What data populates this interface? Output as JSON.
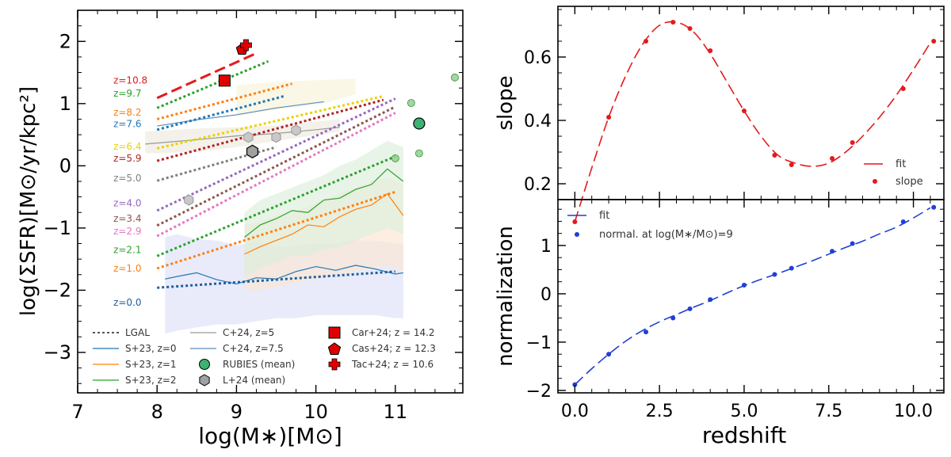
{
  "chart_data": [
    {
      "type": "line",
      "title": "",
      "xlabel": "log(M∗)[M⊙]",
      "ylabel": "log(ΣSFR)[M⊙/yr/kpc²]",
      "xlim": [
        7,
        11.85
      ],
      "ylim": [
        -3.65,
        2.5
      ],
      "xticks": [
        "7",
        "8",
        "9",
        "10",
        "11"
      ],
      "yticks": [
        "−3",
        "−2",
        "−1",
        "0",
        "1",
        "2"
      ],
      "lgal_lines": [
        {
          "z_label": "z=10.8",
          "z": 10.8,
          "color": "#e41a1c",
          "x": [
            8.0,
            9.25
          ],
          "y": [
            1.09,
            1.81
          ],
          "label_y": 1.37
        },
        {
          "z_label": "z=9.7",
          "z": 9.7,
          "color": "#2ca02c",
          "x": [
            8.0,
            9.4
          ],
          "y": [
            0.93,
            1.68
          ],
          "label_y": 1.16
        },
        {
          "z_label": "z=8.2",
          "z": 8.2,
          "color": "#ff7f0e",
          "x": [
            8.0,
            9.7
          ],
          "y": [
            0.75,
            1.32
          ],
          "label_y": 0.86
        },
        {
          "z_label": "z=7.6",
          "z": 7.6,
          "color": "#1f77b4",
          "x": [
            8.0,
            9.6
          ],
          "y": [
            0.58,
            1.12
          ],
          "label_y": 0.67
        },
        {
          "z_label": "z=6.4",
          "z": 6.4,
          "color": "#e8d200",
          "x": [
            8.0,
            10.85
          ],
          "y": [
            0.28,
            1.12
          ],
          "label_y": 0.31
        },
        {
          "z_label": "z=5.9",
          "z": 5.9,
          "color": "#b22222",
          "x": [
            8.0,
            10.85
          ],
          "y": [
            0.08,
            1.06
          ],
          "label_y": 0.12
        },
        {
          "z_label": "z=5.0",
          "z": 5.0,
          "color": "#7f7f7f",
          "x": [
            8.0,
            9.5
          ],
          "y": [
            -0.24,
            0.3
          ],
          "label_y": -0.2
        },
        {
          "z_label": "z=4.0",
          "z": 4.0,
          "color": "#9467bd",
          "x": [
            8.0,
            11.0
          ],
          "y": [
            -0.72,
            1.08
          ],
          "label_y": -0.6
        },
        {
          "z_label": "z=3.4",
          "z": 3.4,
          "color": "#8c564b",
          "x": [
            8.0,
            11.0
          ],
          "y": [
            -0.96,
            0.95
          ],
          "label_y": -0.85
        },
        {
          "z_label": "z=2.9",
          "z": 2.9,
          "color": "#e377c2",
          "x": [
            8.0,
            11.0
          ],
          "y": [
            -1.13,
            0.85
          ],
          "label_y": -1.05
        },
        {
          "z_label": "z=2.1",
          "z": 2.1,
          "color": "#2ca02c",
          "x": [
            8.0,
            11.0
          ],
          "y": [
            -1.45,
            0.15
          ],
          "label_y": -1.35
        },
        {
          "z_label": "z=1.0",
          "z": 1.0,
          "color": "#ff7f0e",
          "x": [
            8.0,
            11.0
          ],
          "y": [
            -1.65,
            -0.42
          ],
          "label_y": -1.65
        },
        {
          "z_label": "z=0.0",
          "z": 0.0,
          "color": "#1f5f9e",
          "x": [
            8.0,
            11.0
          ],
          "y": [
            -1.96,
            -1.7
          ],
          "label_y": -2.2
        }
      ],
      "s23_series": [
        {
          "name": "S+23, z=0",
          "color": "#1f77b4",
          "band": "#dde0f8",
          "x": [
            8.1,
            8.25,
            8.5,
            8.75,
            9.0,
            9.25,
            9.5,
            9.75,
            10.0,
            10.25,
            10.5,
            10.75,
            11.0,
            11.1
          ],
          "y": [
            -1.82,
            -1.78,
            -1.72,
            -1.83,
            -1.9,
            -1.8,
            -1.82,
            -1.7,
            -1.62,
            -1.68,
            -1.6,
            -1.66,
            -1.74,
            -1.72
          ],
          "lo": [
            -2.7,
            -2.65,
            -2.6,
            -2.55,
            -2.55,
            -2.5,
            -2.45,
            -2.45,
            -2.4,
            -2.4,
            -2.4,
            -2.4,
            -2.45,
            -2.45
          ],
          "hi": [
            -1.15,
            -1.1,
            -1.18,
            -1.2,
            -1.28,
            -1.22,
            -1.3,
            -1.28,
            -1.25,
            -1.25,
            -1.2,
            -1.2,
            -1.25,
            -1.25
          ]
        },
        {
          "name": "S+23, z=1",
          "color": "#ff7f0e",
          "band": "#fbe6d2",
          "x": [
            9.1,
            9.3,
            9.5,
            9.7,
            9.9,
            10.1,
            10.3,
            10.5,
            10.7,
            10.9,
            11.1
          ],
          "y": [
            -1.42,
            -1.3,
            -1.2,
            -1.1,
            -0.95,
            -0.98,
            -0.82,
            -0.7,
            -0.63,
            -0.45,
            -0.8
          ],
          "lo": [
            -2.0,
            -2.0,
            -1.95,
            -1.9,
            -1.85,
            -1.8,
            -1.75,
            -1.7,
            -1.65,
            -1.6,
            -1.7
          ],
          "hi": [
            -0.95,
            -0.9,
            -0.8,
            -0.75,
            -0.65,
            -0.55,
            -0.45,
            -0.35,
            -0.25,
            -0.2,
            -0.3
          ]
        },
        {
          "name": "S+23, z=2",
          "color": "#2ca02c",
          "band": "#dceedb",
          "x": [
            9.1,
            9.3,
            9.5,
            9.7,
            9.9,
            10.1,
            10.3,
            10.5,
            10.7,
            10.9,
            11.1
          ],
          "y": [
            -1.15,
            -0.95,
            -0.85,
            -0.72,
            -0.75,
            -0.55,
            -0.52,
            -0.38,
            -0.3,
            -0.05,
            -0.25
          ],
          "lo": [
            -1.8,
            -1.65,
            -1.55,
            -1.45,
            -1.45,
            -1.35,
            -1.3,
            -1.2,
            -1.1,
            -1.0,
            -1.1
          ],
          "hi": [
            -0.75,
            -0.55,
            -0.45,
            -0.35,
            -0.25,
            -0.15,
            0.0,
            0.1,
            0.25,
            0.4,
            0.3
          ]
        }
      ],
      "c24_series": [
        {
          "name": "C+24, z=5",
          "color": "#999999",
          "x": [
            7.85,
            8.5,
            9.0,
            9.5,
            10.0,
            10.3
          ],
          "y": [
            0.35,
            0.42,
            0.48,
            0.52,
            0.58,
            0.62
          ]
        },
        {
          "name": "C+24, z=7.5",
          "color": "#5a8bbf",
          "x": [
            8.0,
            8.5,
            9.0,
            9.5,
            10.1
          ],
          "y": [
            0.64,
            0.74,
            0.82,
            0.93,
            1.03
          ]
        }
      ],
      "rubies_points": {
        "name": "RUBIES (mean)",
        "color": "#3cb371",
        "x": [
          11.75,
          11.2,
          11.3,
          11.0
        ],
        "y": [
          1.42,
          1.01,
          0.2,
          0.12
        ]
      },
      "rubies_mean": {
        "x": 11.3,
        "y": 0.68
      },
      "l24_points": {
        "name": "L+24 (mean)",
        "color": "#c8c8c8",
        "x": [
          9.15,
          9.5,
          9.75,
          8.4
        ],
        "y": [
          0.46,
          0.46,
          0.57,
          -0.55
        ]
      },
      "l24_mean": {
        "x": 9.2,
        "y": 0.23
      },
      "car24": {
        "name": "Car+24; z = 14.2",
        "x": 8.85,
        "y": 1.37
      },
      "cas24": {
        "name": "Cas+24; z = 12.3",
        "x": 9.07,
        "y": 1.87
      },
      "tac24": {
        "name": "Tac+24; z = 10.6",
        "x": 9.12,
        "y": 1.94
      },
      "legend": {
        "placement": "lower",
        "col1": [
          "LGAL",
          "S+23, z=0",
          "S+23, z=1",
          "S+23, z=2"
        ],
        "col2": [
          "C+24, z=5",
          "C+24, z=7.5",
          "RUBIES (mean)",
          "L+24 (mean)"
        ],
        "col3": [
          "Car+24; z = 14.2",
          "Cas+24; z = 12.3",
          "Tac+24; z = 10.6"
        ]
      }
    },
    {
      "type": "line",
      "xlabel": "",
      "ylabel": "slope",
      "xlim": [
        -0.5,
        10.9
      ],
      "ylim": [
        0.15,
        0.76
      ],
      "yticks": [
        "0.2",
        "0.4",
        "0.6"
      ],
      "fit": {
        "name": "fit",
        "color": "#e41a1c",
        "x": [
          0.0,
          0.5,
          1.0,
          1.5,
          2.0,
          2.5,
          3.0,
          3.5,
          4.0,
          4.5,
          5.0,
          5.5,
          6.0,
          6.5,
          7.0,
          7.5,
          8.0,
          8.5,
          9.0,
          9.5,
          10.0,
          10.5
        ],
        "y": [
          0.08,
          0.25,
          0.41,
          0.54,
          0.64,
          0.7,
          0.71,
          0.68,
          0.61,
          0.52,
          0.43,
          0.35,
          0.29,
          0.265,
          0.255,
          0.265,
          0.3,
          0.35,
          0.41,
          0.48,
          0.56,
          0.645
        ]
      },
      "points": {
        "name": "slope",
        "color": "#e41a1c",
        "x": [
          0.0,
          1.0,
          2.1,
          2.9,
          3.4,
          4.0,
          5.0,
          5.9,
          6.4,
          7.6,
          8.2,
          9.7,
          10.6
        ],
        "y": [
          0.08,
          0.41,
          0.65,
          0.71,
          0.69,
          0.62,
          0.43,
          0.29,
          0.26,
          0.28,
          0.33,
          0.5,
          0.65
        ]
      },
      "legend": {
        "placement": "lower-right",
        "items": [
          "fit",
          "slope"
        ]
      }
    },
    {
      "type": "line",
      "xlabel": "redshift",
      "ylabel": "normalization",
      "xlim": [
        -0.5,
        10.9
      ],
      "ylim": [
        -2.05,
        1.95
      ],
      "xticks": [
        "0.0",
        "2.5",
        "5.0",
        "7.5",
        "10.0"
      ],
      "yticks": [
        "−2",
        "−1",
        "0",
        "1"
      ],
      "fit": {
        "name": "fit",
        "color": "#1f3fd6",
        "x": [
          0.0,
          0.5,
          1.0,
          1.5,
          2.0,
          2.5,
          3.0,
          3.5,
          4.0,
          4.5,
          5.0,
          5.5,
          6.0,
          6.5,
          7.0,
          7.5,
          8.0,
          8.5,
          9.0,
          9.5,
          10.0,
          10.5
        ],
        "y": [
          -1.88,
          -1.55,
          -1.25,
          -0.98,
          -0.76,
          -0.58,
          -0.43,
          -0.28,
          -0.14,
          0.02,
          0.17,
          0.3,
          0.42,
          0.55,
          0.68,
          0.82,
          0.96,
          1.09,
          1.24,
          1.38,
          1.57,
          1.78
        ]
      },
      "points": {
        "name": "normal. at log(M∗/M⊙)=9",
        "color": "#1f3fd6",
        "x": [
          0.0,
          1.0,
          2.1,
          2.9,
          3.4,
          4.0,
          5.0,
          5.9,
          6.4,
          7.6,
          8.2,
          9.7,
          10.6
        ],
        "y": [
          -1.88,
          -1.25,
          -0.79,
          -0.5,
          -0.31,
          -0.12,
          0.18,
          0.4,
          0.53,
          0.88,
          1.04,
          1.49,
          1.79
        ]
      },
      "legend": {
        "placement": "upper-left",
        "items": [
          "fit",
          "normal. at log(M∗/M⊙)=9"
        ]
      }
    }
  ]
}
